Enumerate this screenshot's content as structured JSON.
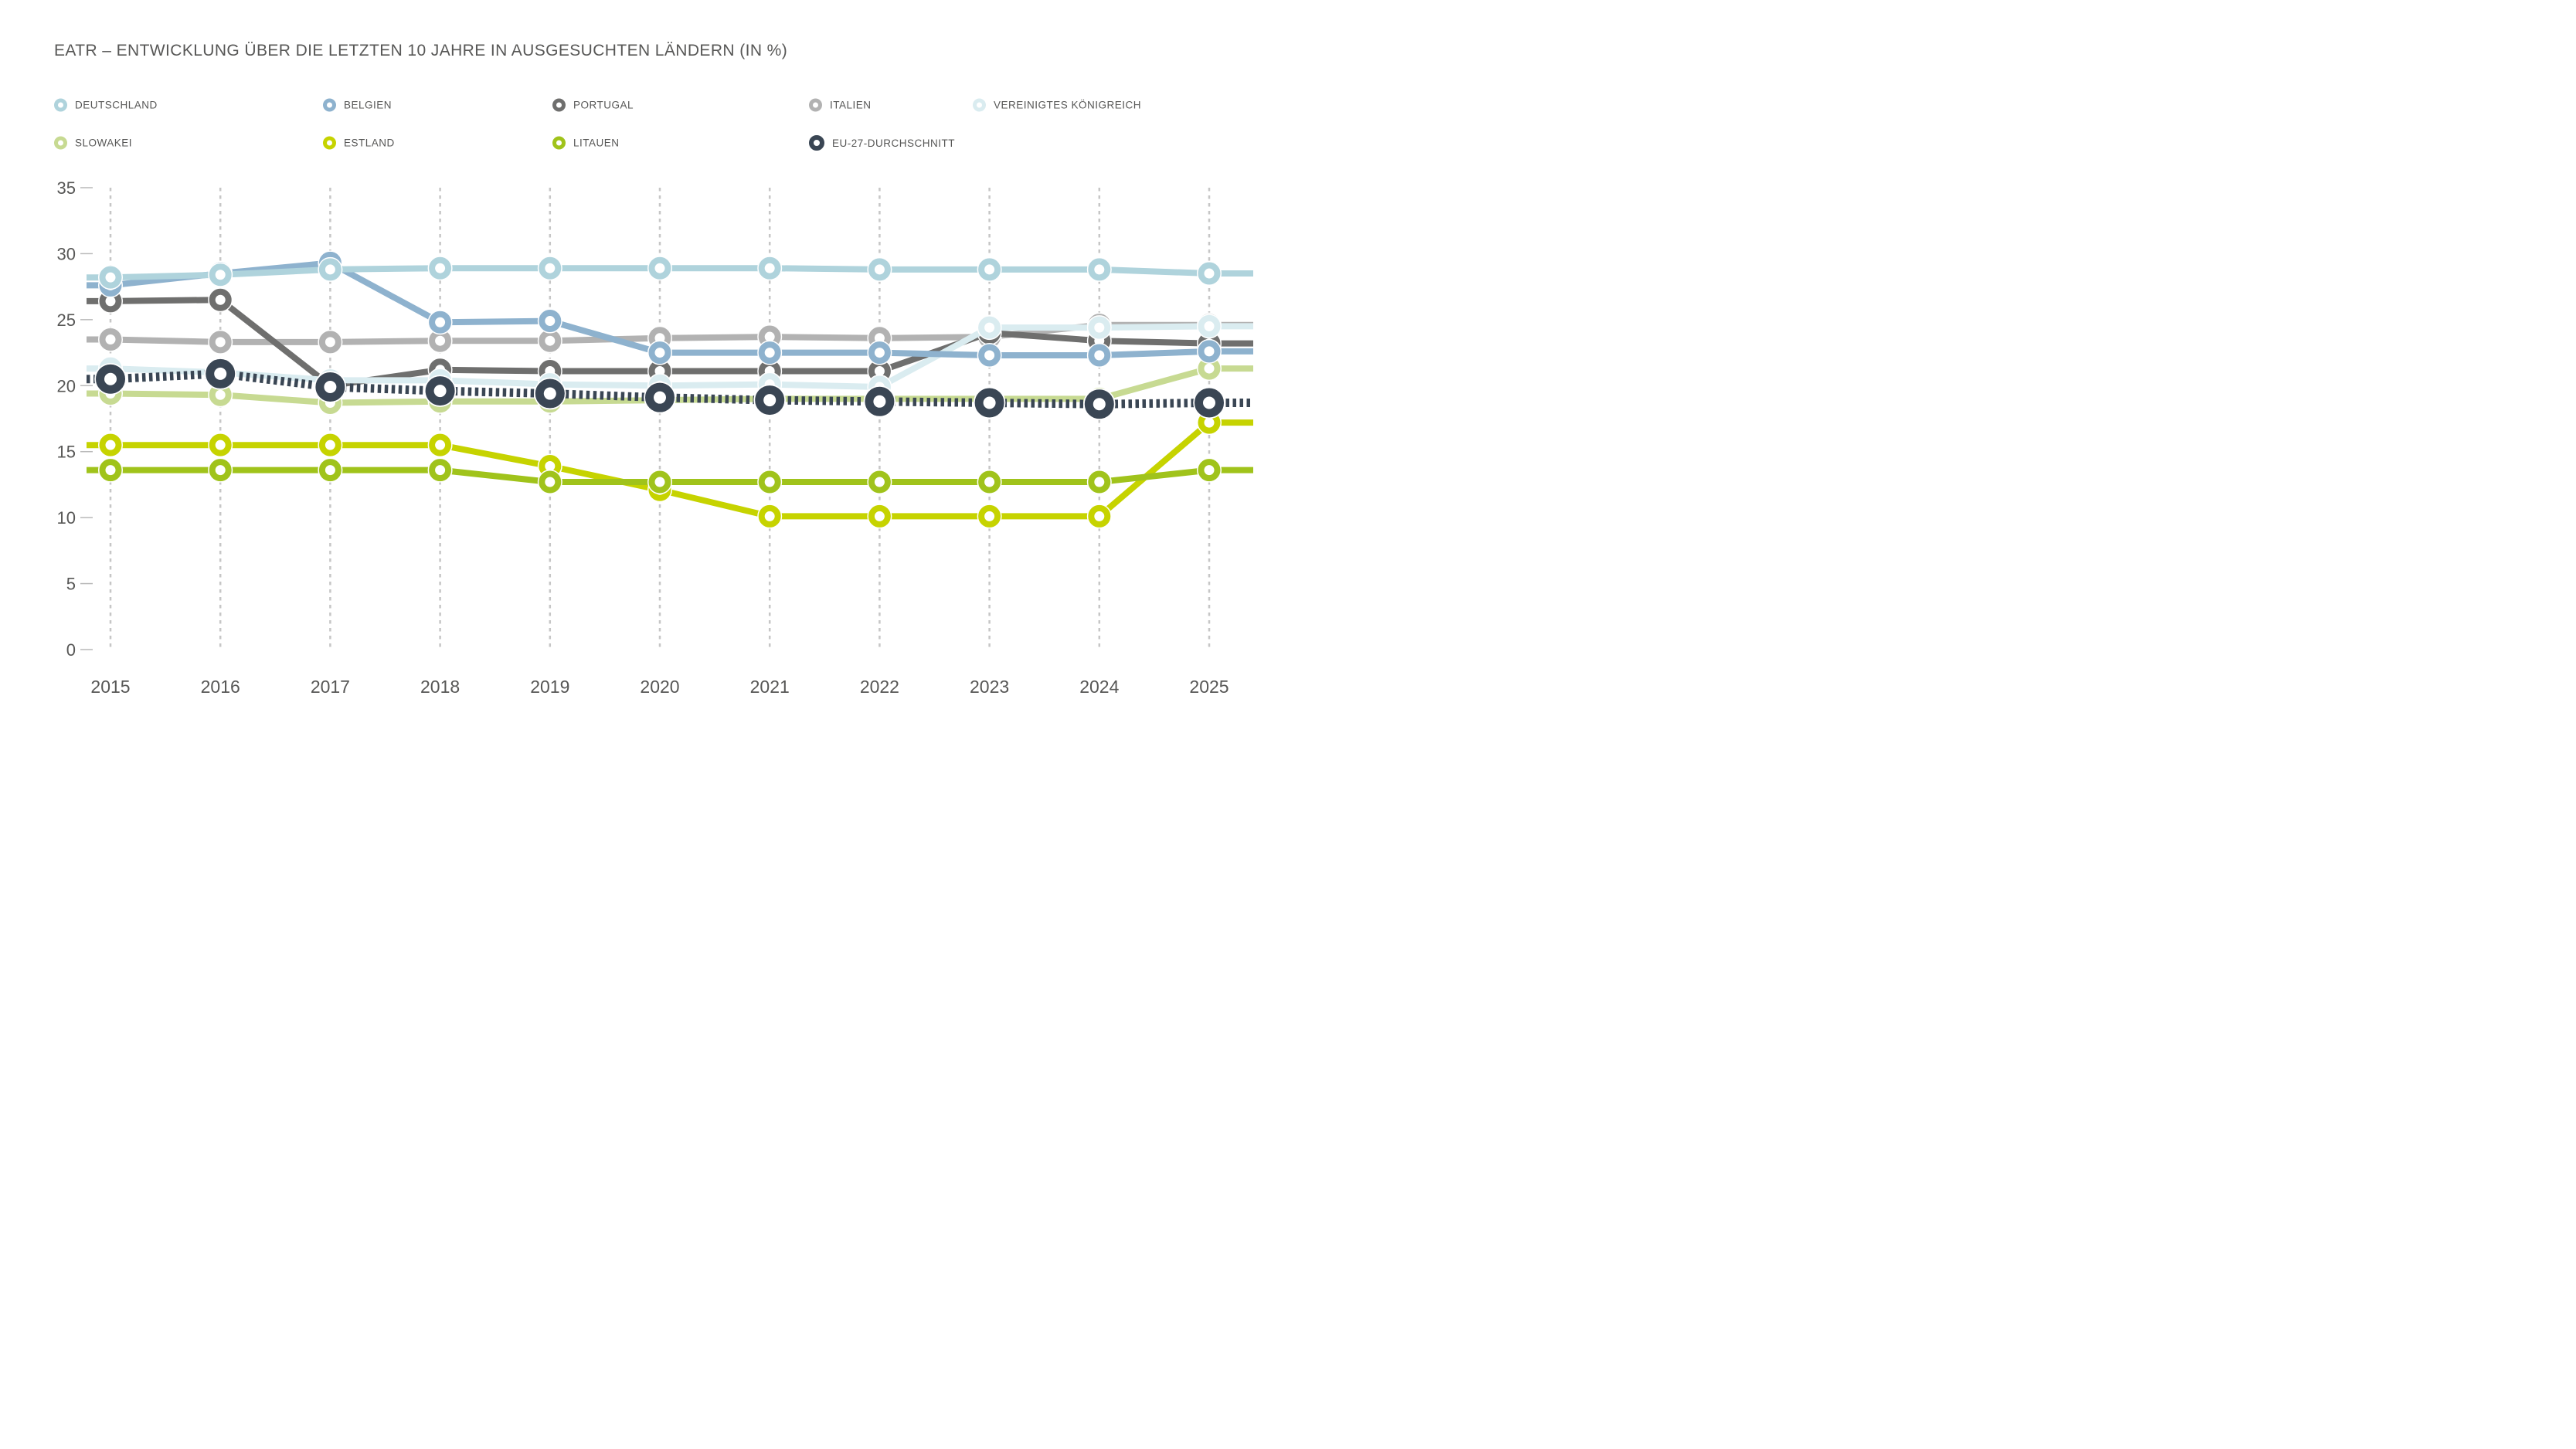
{
  "title": "EATR – ENTWICKLUNG ÜBER DIE LETZTEN 10 JAHRE IN AUSGESUCHTEN LÄNDERN (IN %)",
  "colors": {
    "text": "#575756",
    "gridline": "#c6c6c6",
    "tick": "#b9b9b9",
    "background": "#ffffff"
  },
  "chart_data": {
    "type": "line",
    "title": "EATR – ENTWICKLUNG ÜBER DIE LETZTEN 10 JAHRE IN AUSGESUCHTEN LÄNDERN (IN %)",
    "xlabel": "",
    "ylabel": "",
    "x": [
      2015,
      2016,
      2017,
      2018,
      2019,
      2020,
      2021,
      2022,
      2023,
      2024,
      2025
    ],
    "yticks": [
      35,
      30,
      25,
      20,
      15,
      10,
      5,
      0
    ],
    "ylim": [
      0,
      35
    ],
    "grid": "vertical-dashed-per-year",
    "legend_position": "top",
    "marker": "ring",
    "series": [
      {
        "name": "DEUTSCHLAND",
        "color": "#afd3dc",
        "style": "solid",
        "values": [
          28.2,
          28.4,
          28.8,
          28.9,
          28.9,
          28.9,
          28.9,
          28.8,
          28.8,
          28.8,
          28.5
        ]
      },
      {
        "name": "BELGIEN",
        "color": "#8eb2ce",
        "style": "solid",
        "values": [
          27.6,
          28.5,
          29.3,
          24.8,
          24.9,
          22.5,
          22.5,
          22.5,
          22.3,
          22.3,
          22.6
        ]
      },
      {
        "name": "PORTUGAL",
        "color": "#6f6f6e",
        "style": "solid",
        "values": [
          26.4,
          26.5,
          20.0,
          21.2,
          21.1,
          21.1,
          21.1,
          21.1,
          24.0,
          23.4,
          23.2
        ]
      },
      {
        "name": "ITALIEN",
        "color": "#b2b2b2",
        "style": "solid",
        "values": [
          23.5,
          23.3,
          23.3,
          23.4,
          23.4,
          23.6,
          23.7,
          23.6,
          23.7,
          24.6,
          24.6
        ]
      },
      {
        "name": "VEREINIGTES KÖNIGREICH",
        "color": "#daecf0",
        "style": "solid",
        "values": [
          21.3,
          21.0,
          20.4,
          20.4,
          20.1,
          20.0,
          20.1,
          19.9,
          24.4,
          24.4,
          24.5
        ]
      },
      {
        "name": "SLOWAKEI",
        "color": "#c7da92",
        "style": "solid",
        "values": [
          19.4,
          19.3,
          18.7,
          18.8,
          18.8,
          18.9,
          19.0,
          19.0,
          19.0,
          19.0,
          21.3
        ]
      },
      {
        "name": "ESTLAND",
        "color": "#c6d300",
        "style": "solid",
        "values": [
          15.5,
          15.5,
          15.5,
          15.5,
          13.9,
          12.1,
          10.1,
          10.1,
          10.1,
          10.1,
          17.2
        ]
      },
      {
        "name": "LITAUEN",
        "color": "#a0c31b",
        "style": "solid",
        "values": [
          13.6,
          13.6,
          13.6,
          13.6,
          12.7,
          12.7,
          12.7,
          12.7,
          12.7,
          12.7,
          13.6
        ]
      },
      {
        "name": "EU-27-DURCHSCHNITT",
        "color": "#3a4654",
        "style": "comb",
        "values": [
          20.5,
          20.9,
          19.9,
          19.6,
          19.4,
          19.1,
          18.9,
          18.8,
          18.7,
          18.6,
          18.7
        ]
      }
    ],
    "draw_order": [
      "ITALIEN",
      "PORTUGAL",
      "SLOWAKEI",
      "VEREINIGTES KÖNIGREICH",
      "BELGIEN",
      "DEUTSCHLAND",
      "ESTLAND",
      "LITAUEN",
      "EU-27-DURCHSCHNITT"
    ]
  }
}
